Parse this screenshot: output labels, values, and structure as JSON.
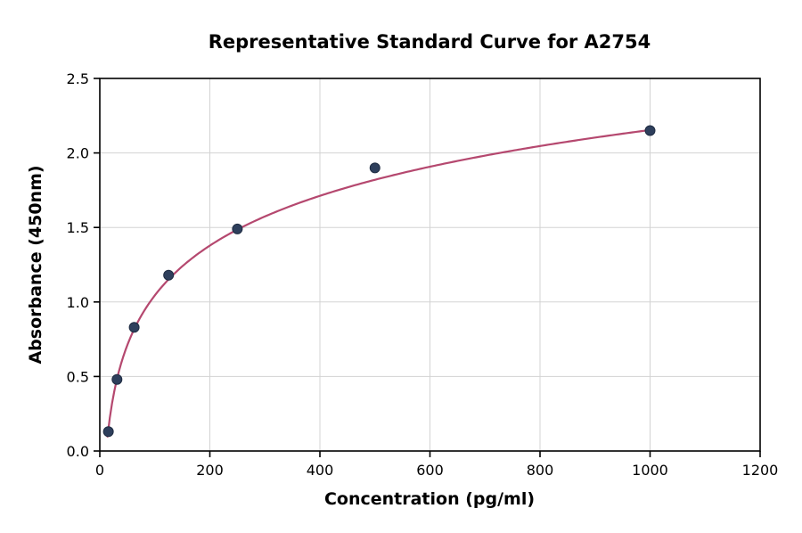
{
  "chart_data": {
    "type": "scatter",
    "title": "Representative Standard Curve for A2754",
    "xlabel": "Concentration (pg/ml)",
    "ylabel": "Absorbance (450nm)",
    "xlim": [
      0,
      1200
    ],
    "ylim": [
      0,
      2.5
    ],
    "x_ticks": [
      0,
      200,
      400,
      600,
      800,
      1000,
      1200
    ],
    "x_tick_labels": [
      "0",
      "200",
      "400",
      "600",
      "800",
      "1000",
      "1200"
    ],
    "y_ticks": [
      0,
      0.5,
      1.0,
      1.5,
      2.0,
      2.5
    ],
    "y_tick_labels": [
      "0.0",
      "0.5",
      "1.0",
      "1.5",
      "2.0",
      "2.5"
    ],
    "grid": true,
    "legend": "none",
    "points": [
      {
        "x": 15.6,
        "y": 0.13
      },
      {
        "x": 31.25,
        "y": 0.48
      },
      {
        "x": 62.5,
        "y": 0.83
      },
      {
        "x": 125,
        "y": 1.18
      },
      {
        "x": 250,
        "y": 1.49
      },
      {
        "x": 500,
        "y": 1.9
      },
      {
        "x": 1000,
        "y": 2.15
      }
    ],
    "curve_fit": {
      "type": "log",
      "a": 0.4819,
      "b": -1.175,
      "x_start": 14,
      "x_end": 1005
    },
    "colors": {
      "point": "#2e3f5c",
      "point_edge": "#1f2c42",
      "curve": "#b5486f",
      "grid": "#d3d3d3",
      "axis": "#000000",
      "background": "#ffffff"
    }
  }
}
